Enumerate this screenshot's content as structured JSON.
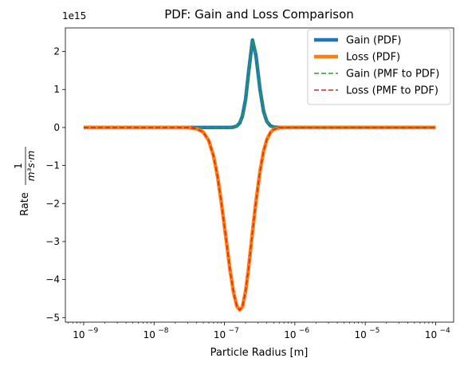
{
  "chart_data": {
    "type": "line",
    "title": "PDF: Gain and Loss Comparison",
    "xlabel": "Particle Radius [m]",
    "ylabel_prefix": "Rate",
    "ylabel_fraction": {
      "numerator": "1",
      "denominator": "m³s·m"
    },
    "xscale": "log",
    "xlim": [
      5.5e-10,
      0.00018
    ],
    "ylim": [
      -5120000000000000.0,
      2620000000000000.0
    ],
    "y_offset_label": "1e15",
    "x_ticks": [
      {
        "value": 1e-09,
        "base": "10",
        "exp": "−9"
      },
      {
        "value": 1e-08,
        "base": "10",
        "exp": "−8"
      },
      {
        "value": 1e-07,
        "base": "10",
        "exp": "−7"
      },
      {
        "value": 1e-06,
        "base": "10",
        "exp": "−6"
      },
      {
        "value": 1e-05,
        "base": "10",
        "exp": "−5"
      },
      {
        "value": 0.0001,
        "base": "10",
        "exp": "−4"
      }
    ],
    "y_ticks": [
      {
        "value": 2000000000000000.0,
        "label": "2"
      },
      {
        "value": 1000000000000000.0,
        "label": "1"
      },
      {
        "value": 0,
        "label": "0"
      },
      {
        "value": -1000000000000000.0,
        "label": "−1"
      },
      {
        "value": -2000000000000000.0,
        "label": "−2"
      },
      {
        "value": -3000000000000000.0,
        "label": "−3"
      },
      {
        "value": -4000000000000000.0,
        "label": "−4"
      },
      {
        "value": -5000000000000000.0,
        "label": "−5"
      }
    ],
    "grid": false,
    "legend_position": "top-right",
    "x": [
      1e-09,
      2e-09,
      5e-09,
      1e-08,
      2e-08,
      3e-08,
      4e-08,
      5e-08,
      6e-08,
      7e-08,
      8e-08,
      9e-08,
      1e-07,
      1.1e-07,
      1.2e-07,
      1.35e-07,
      1.5e-07,
      1.65e-07,
      1.8e-07,
      2e-07,
      2.2e-07,
      2.5e-07,
      2.8e-07,
      3.2e-07,
      3.6e-07,
      4e-07,
      4.5e-07,
      5e-07,
      6e-07,
      7e-07,
      8e-07,
      1e-06,
      2e-06,
      5e-06,
      1e-05,
      2e-05,
      5e-05,
      0.0001
    ],
    "series": [
      {
        "name": "Gain (PDF)",
        "color": "#1f77b4",
        "dash": "solid",
        "width": 4.5,
        "values": [
          0,
          0,
          0,
          0,
          0,
          0,
          0,
          0,
          0,
          0,
          0,
          0,
          0,
          0,
          1000000000000.0,
          10000000000000.0,
          40000000000000.0,
          120000000000000.0,
          300000000000000.0,
          750000000000000.0,
          1450000000000000.0,
          2300000000000000.0,
          1900000000000000.0,
          1000000000000000.0,
          420000000000000.0,
          160000000000000.0,
          45000000000000.0,
          12000000000000.0,
          1000000000000.0,
          0,
          0,
          0,
          0,
          0,
          0,
          0,
          0,
          0
        ]
      },
      {
        "name": "Loss (PDF)",
        "color": "#ff7f0e",
        "dash": "solid",
        "width": 4.5,
        "values": [
          0,
          0,
          0,
          0,
          0,
          -3000000000000.0,
          -30000000000000.0,
          -120000000000000.0,
          -350000000000000.0,
          -750000000000000.0,
          -1300000000000000.0,
          -1950000000000000.0,
          -2600000000000000.0,
          -3200000000000000.0,
          -3750000000000000.0,
          -4350000000000000.0,
          -4700000000000000.0,
          -4800000000000000.0,
          -4720000000000000.0,
          -4300000000000000.0,
          -3700000000000000.0,
          -2750000000000000.0,
          -1950000000000000.0,
          -1150000000000000.0,
          -620000000000000.0,
          -320000000000000.0,
          -130000000000000.0,
          -50000000000000.0,
          -8000000000000.0,
          -2000000000000.0,
          0,
          0,
          0,
          0,
          0,
          0,
          0,
          0
        ]
      },
      {
        "name": "Gain (PMF to PDF)",
        "color": "#2ca02c",
        "dash": "dashed",
        "width": 1.5,
        "values": [
          0,
          0,
          0,
          0,
          0,
          0,
          0,
          0,
          0,
          0,
          0,
          0,
          0,
          0,
          1000000000000.0,
          10000000000000.0,
          40000000000000.0,
          120000000000000.0,
          300000000000000.0,
          750000000000000.0,
          1450000000000000.0,
          2300000000000000.0,
          1900000000000000.0,
          1000000000000000.0,
          420000000000000.0,
          160000000000000.0,
          45000000000000.0,
          12000000000000.0,
          1000000000000.0,
          0,
          0,
          0,
          0,
          0,
          0,
          0,
          0,
          0
        ]
      },
      {
        "name": "Loss (PMF to PDF)",
        "color": "#d62728",
        "dash": "dashed",
        "width": 1.5,
        "values": [
          0,
          0,
          0,
          0,
          0,
          -3000000000000.0,
          -30000000000000.0,
          -120000000000000.0,
          -350000000000000.0,
          -750000000000000.0,
          -1300000000000000.0,
          -1950000000000000.0,
          -2600000000000000.0,
          -3200000000000000.0,
          -3750000000000000.0,
          -4350000000000000.0,
          -4700000000000000.0,
          -4800000000000000.0,
          -4720000000000000.0,
          -4300000000000000.0,
          -3700000000000000.0,
          -2750000000000000.0,
          -1950000000000000.0,
          -1150000000000000.0,
          -620000000000000.0,
          -320000000000000.0,
          -130000000000000.0,
          -50000000000000.0,
          -8000000000000.0,
          -2000000000000.0,
          0,
          0,
          0,
          0,
          0,
          0,
          0,
          0
        ]
      }
    ]
  }
}
